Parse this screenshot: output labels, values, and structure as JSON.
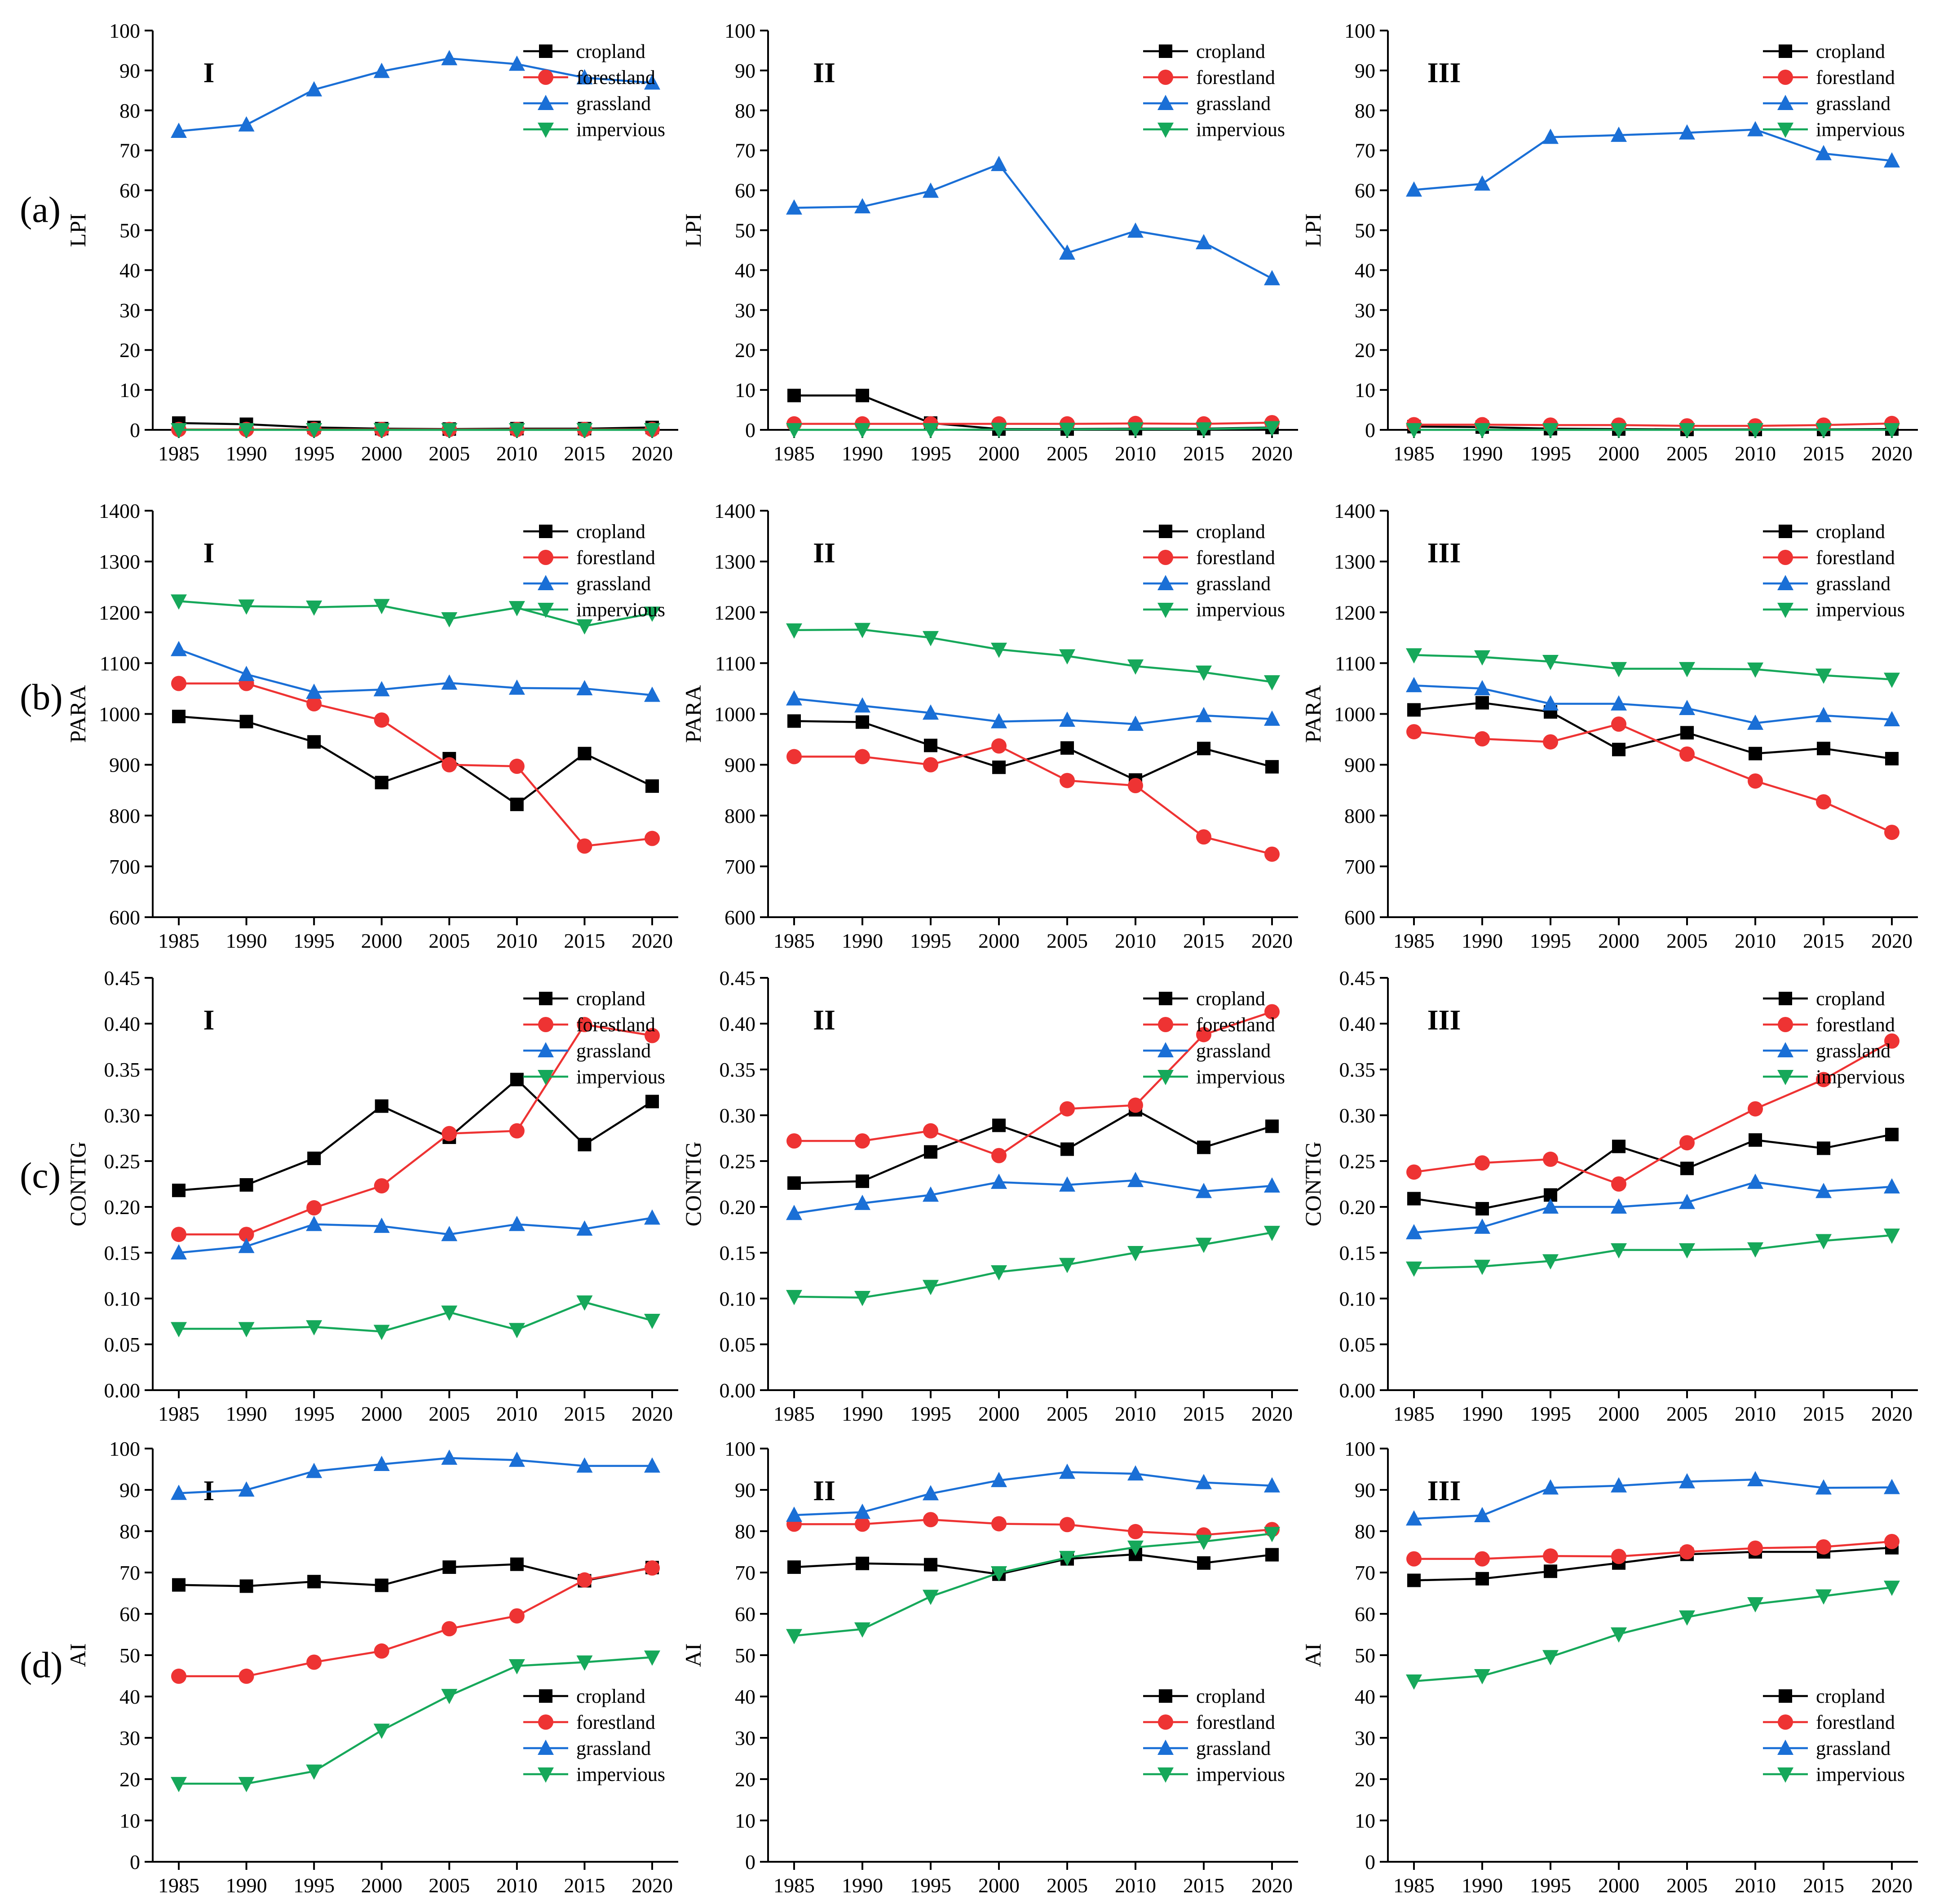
{
  "figure": {
    "row_labels": [
      "(a)",
      "(b)",
      "(c)",
      "(d)"
    ],
    "colors": {
      "cropland": "#000000",
      "forestland": "#ee3333",
      "grassland": "#1a6fd6",
      "impervious": "#16a85a"
    },
    "markers": {
      "cropland": "square",
      "forestland": "circle",
      "grassland": "triangle-up",
      "impervious": "triangle-down"
    }
  },
  "chart_data": [
    {
      "type": "line",
      "row": 0,
      "col": 0,
      "title": "I",
      "ylabel": "LPI",
      "ylim": [
        0,
        100
      ],
      "yticks": [
        "0",
        "10",
        "20",
        "30",
        "40",
        "50",
        "60",
        "70",
        "80",
        "90",
        "100"
      ],
      "categories": [
        "1985",
        "1990",
        "1995",
        "2000",
        "2005",
        "2010",
        "2015",
        "2020"
      ],
      "legend": "top-right",
      "series": [
        {
          "name": "cropland",
          "values": [
            1.7,
            1.4,
            0.6,
            0.3,
            0.2,
            0.3,
            0.3,
            0.6
          ]
        },
        {
          "name": "forestland",
          "values": [
            0.1,
            0.1,
            0.1,
            0.1,
            0.1,
            0.1,
            0.1,
            0.1
          ]
        },
        {
          "name": "grassland",
          "values": [
            74.8,
            76.4,
            85.2,
            89.8,
            93.0,
            91.6,
            88.2,
            86.9
          ]
        },
        {
          "name": "impervious",
          "values": [
            0.0,
            0.0,
            0.0,
            0.0,
            0.0,
            0.0,
            0.0,
            0.0
          ]
        }
      ]
    },
    {
      "type": "line",
      "row": 0,
      "col": 1,
      "title": "II",
      "ylabel": "LPI",
      "ylim": [
        0,
        100
      ],
      "yticks": [
        "0",
        "10",
        "20",
        "30",
        "40",
        "50",
        "60",
        "70",
        "80",
        "90",
        "100"
      ],
      "categories": [
        "1985",
        "1990",
        "1995",
        "2000",
        "2005",
        "2010",
        "2015",
        "2020"
      ],
      "legend": "top-right",
      "series": [
        {
          "name": "cropland",
          "values": [
            8.6,
            8.6,
            1.7,
            0.2,
            0.2,
            0.3,
            0.3,
            0.6
          ]
        },
        {
          "name": "forestland",
          "values": [
            1.5,
            1.5,
            1.5,
            1.5,
            1.5,
            1.6,
            1.5,
            1.8
          ]
        },
        {
          "name": "grassland",
          "values": [
            55.6,
            55.9,
            59.8,
            66.5,
            44.3,
            49.8,
            46.9,
            37.9
          ]
        },
        {
          "name": "impervious",
          "values": [
            0.0,
            0.0,
            0.0,
            0.1,
            0.1,
            0.2,
            0.2,
            0.5
          ]
        }
      ]
    },
    {
      "type": "line",
      "row": 0,
      "col": 2,
      "title": "III",
      "ylabel": "LPI",
      "ylim": [
        0,
        100
      ],
      "yticks": [
        "0",
        "10",
        "20",
        "30",
        "40",
        "50",
        "60",
        "70",
        "80",
        "90",
        "100"
      ],
      "categories": [
        "1985",
        "1990",
        "1995",
        "2000",
        "2005",
        "2010",
        "2015",
        "2020"
      ],
      "legend": "top-right",
      "series": [
        {
          "name": "cropland",
          "values": [
            0.8,
            0.7,
            0.3,
            0.2,
            0.1,
            0.1,
            0.1,
            0.2
          ]
        },
        {
          "name": "forestland",
          "values": [
            1.3,
            1.3,
            1.2,
            1.2,
            1.0,
            1.0,
            1.2,
            1.6
          ]
        },
        {
          "name": "grassland",
          "values": [
            60.1,
            61.6,
            73.3,
            73.8,
            74.4,
            75.2,
            69.2,
            67.4
          ]
        },
        {
          "name": "impervious",
          "values": [
            0.0,
            0.0,
            0.0,
            0.0,
            0.0,
            0.0,
            0.0,
            0.0
          ]
        }
      ]
    },
    {
      "type": "line",
      "row": 1,
      "col": 0,
      "title": "I",
      "ylabel": "PARA",
      "ylim": [
        600,
        1400
      ],
      "yticks": [
        "600",
        "700",
        "800",
        "900",
        "1000",
        "1100",
        "1200",
        "1300",
        "1400"
      ],
      "categories": [
        "1985",
        "1990",
        "1995",
        "2000",
        "2005",
        "2010",
        "2015",
        "2020"
      ],
      "legend": "top-right",
      "series": [
        {
          "name": "cropland",
          "values": [
            995,
            985,
            945,
            865,
            912,
            822,
            922,
            858
          ]
        },
        {
          "name": "forestland",
          "values": [
            1060,
            1060,
            1020,
            988,
            900,
            897,
            740,
            755
          ]
        },
        {
          "name": "grassland",
          "values": [
            1127,
            1078,
            1043,
            1048,
            1061,
            1051,
            1050,
            1037
          ]
        },
        {
          "name": "impervious",
          "values": [
            1222,
            1212,
            1210,
            1213,
            1187,
            1209,
            1173,
            1198
          ]
        }
      ]
    },
    {
      "type": "line",
      "row": 1,
      "col": 1,
      "title": "II",
      "ylabel": "PARA",
      "ylim": [
        600,
        1400
      ],
      "yticks": [
        "600",
        "700",
        "800",
        "900",
        "1000",
        "1100",
        "1200",
        "1300",
        "1400"
      ],
      "categories": [
        "1985",
        "1990",
        "1995",
        "2000",
        "2005",
        "2010",
        "2015",
        "2020"
      ],
      "legend": "top-right",
      "series": [
        {
          "name": "cropland",
          "values": [
            986,
            984,
            938,
            895,
            933,
            870,
            932,
            896
          ]
        },
        {
          "name": "forestland",
          "values": [
            916,
            916,
            900,
            937,
            869,
            859,
            758,
            724
          ]
        },
        {
          "name": "grassland",
          "values": [
            1030,
            1016,
            1002,
            985,
            988,
            980,
            997,
            990
          ]
        },
        {
          "name": "impervious",
          "values": [
            1165,
            1166,
            1150,
            1127,
            1114,
            1094,
            1082,
            1063
          ]
        }
      ]
    },
    {
      "type": "line",
      "row": 1,
      "col": 2,
      "title": "III",
      "ylabel": "PARA",
      "ylim": [
        600,
        1400
      ],
      "yticks": [
        "600",
        "700",
        "800",
        "900",
        "1000",
        "1100",
        "1200",
        "1300",
        "1400"
      ],
      "categories": [
        "1985",
        "1990",
        "1995",
        "2000",
        "2005",
        "2010",
        "2015",
        "2020"
      ],
      "legend": "top-right",
      "series": [
        {
          "name": "cropland",
          "values": [
            1008,
            1022,
            1004,
            930,
            963,
            922,
            932,
            912
          ]
        },
        {
          "name": "forestland",
          "values": [
            965,
            951,
            945,
            980,
            921,
            868,
            827,
            767
          ]
        },
        {
          "name": "grassland",
          "values": [
            1056,
            1050,
            1020,
            1020,
            1011,
            982,
            997,
            989
          ]
        },
        {
          "name": "impervious",
          "values": [
            1116,
            1112,
            1103,
            1089,
            1089,
            1088,
            1076,
            1068
          ]
        }
      ]
    },
    {
      "type": "line",
      "row": 2,
      "col": 0,
      "title": "I",
      "ylabel": "CONTIG",
      "ylim": [
        0,
        0.45
      ],
      "yticks": [
        "0.00",
        "0.05",
        "0.10",
        "0.15",
        "0.20",
        "0.25",
        "0.30",
        "0.35",
        "0.40",
        "0.45"
      ],
      "categories": [
        "1985",
        "1990",
        "1995",
        "2000",
        "2005",
        "2010",
        "2015",
        "2020"
      ],
      "legend": "top-right",
      "series": [
        {
          "name": "cropland",
          "values": [
            0.218,
            0.224,
            0.253,
            0.31,
            0.276,
            0.339,
            0.268,
            0.315
          ]
        },
        {
          "name": "forestland",
          "values": [
            0.17,
            0.17,
            0.199,
            0.223,
            0.28,
            0.283,
            0.399,
            0.387
          ]
        },
        {
          "name": "grassland",
          "values": [
            0.15,
            0.157,
            0.181,
            0.179,
            0.17,
            0.181,
            0.176,
            0.188
          ]
        },
        {
          "name": "impervious",
          "values": [
            0.067,
            0.067,
            0.069,
            0.064,
            0.085,
            0.066,
            0.096,
            0.076
          ]
        }
      ]
    },
    {
      "type": "line",
      "row": 2,
      "col": 1,
      "title": "II",
      "ylabel": "CONTIG",
      "ylim": [
        0,
        0.45
      ],
      "yticks": [
        "0.00",
        "0.05",
        "0.10",
        "0.15",
        "0.20",
        "0.25",
        "0.30",
        "0.35",
        "0.40",
        "0.45"
      ],
      "categories": [
        "1985",
        "1990",
        "1995",
        "2000",
        "2005",
        "2010",
        "2015",
        "2020"
      ],
      "legend": "top-right",
      "series": [
        {
          "name": "cropland",
          "values": [
            0.226,
            0.228,
            0.26,
            0.289,
            0.263,
            0.306,
            0.265,
            0.288
          ]
        },
        {
          "name": "forestland",
          "values": [
            0.272,
            0.272,
            0.283,
            0.256,
            0.307,
            0.311,
            0.388,
            0.413
          ]
        },
        {
          "name": "grassland",
          "values": [
            0.193,
            0.204,
            0.213,
            0.227,
            0.224,
            0.229,
            0.217,
            0.223
          ]
        },
        {
          "name": "impervious",
          "values": [
            0.102,
            0.101,
            0.113,
            0.129,
            0.137,
            0.15,
            0.159,
            0.172
          ]
        }
      ]
    },
    {
      "type": "line",
      "row": 2,
      "col": 2,
      "title": "III",
      "ylabel": "CONTIG",
      "ylim": [
        0,
        0.45
      ],
      "yticks": [
        "0.00",
        "0.05",
        "0.10",
        "0.15",
        "0.20",
        "0.25",
        "0.30",
        "0.35",
        "0.40",
        "0.45"
      ],
      "categories": [
        "1985",
        "1990",
        "1995",
        "2000",
        "2005",
        "2010",
        "2015",
        "2020"
      ],
      "legend": "top-right",
      "series": [
        {
          "name": "cropland",
          "values": [
            0.209,
            0.198,
            0.213,
            0.266,
            0.242,
            0.273,
            0.264,
            0.279
          ]
        },
        {
          "name": "forestland",
          "values": [
            0.238,
            0.248,
            0.252,
            0.225,
            0.27,
            0.307,
            0.339,
            0.381
          ]
        },
        {
          "name": "grassland",
          "values": [
            0.172,
            0.178,
            0.2,
            0.2,
            0.205,
            0.227,
            0.217,
            0.222
          ]
        },
        {
          "name": "impervious",
          "values": [
            0.133,
            0.135,
            0.141,
            0.153,
            0.153,
            0.154,
            0.163,
            0.169
          ]
        }
      ]
    },
    {
      "type": "line",
      "row": 3,
      "col": 0,
      "title": "I",
      "ylabel": "AI",
      "ylim": [
        0,
        100
      ],
      "yticks": [
        "0",
        "10",
        "20",
        "30",
        "40",
        "50",
        "60",
        "70",
        "80",
        "90",
        "100"
      ],
      "categories": [
        "1985",
        "1990",
        "1995",
        "2000",
        "2005",
        "2010",
        "2015",
        "2020"
      ],
      "legend": "bottom-right",
      "series": [
        {
          "name": "cropland",
          "values": [
            67.0,
            66.7,
            67.8,
            66.9,
            71.3,
            72.0,
            68.0,
            71.2
          ]
        },
        {
          "name": "forestland",
          "values": [
            44.9,
            44.9,
            48.3,
            51.0,
            56.4,
            59.5,
            68.2,
            71.1
          ]
        },
        {
          "name": "grassland",
          "values": [
            89.2,
            90.0,
            94.5,
            96.2,
            97.7,
            97.2,
            95.8,
            95.8
          ]
        },
        {
          "name": "impervious",
          "values": [
            18.9,
            18.9,
            21.9,
            31.8,
            40.2,
            47.4,
            48.3,
            49.5
          ]
        }
      ]
    },
    {
      "type": "line",
      "row": 3,
      "col": 1,
      "title": "II",
      "ylabel": "AI",
      "ylim": [
        0,
        100
      ],
      "yticks": [
        "0",
        "10",
        "20",
        "30",
        "40",
        "50",
        "60",
        "70",
        "80",
        "90",
        "100"
      ],
      "categories": [
        "1985",
        "1990",
        "1995",
        "2000",
        "2005",
        "2010",
        "2015",
        "2020"
      ],
      "legend": "bottom-right",
      "series": [
        {
          "name": "cropland",
          "values": [
            71.3,
            72.2,
            71.9,
            69.6,
            73.3,
            74.4,
            72.3,
            74.3
          ]
        },
        {
          "name": "forestland",
          "values": [
            81.7,
            81.7,
            82.8,
            81.8,
            81.6,
            79.9,
            79.1,
            80.4
          ]
        },
        {
          "name": "grassland",
          "values": [
            83.9,
            84.6,
            89.1,
            92.3,
            94.3,
            93.9,
            91.8,
            91.0
          ]
        },
        {
          "name": "impervious",
          "values": [
            54.7,
            56.3,
            64.2,
            69.9,
            73.6,
            76.1,
            77.5,
            79.4
          ]
        }
      ]
    },
    {
      "type": "line",
      "row": 3,
      "col": 2,
      "title": "III",
      "ylabel": "AI",
      "ylim": [
        0,
        100
      ],
      "yticks": [
        "0",
        "10",
        "20",
        "30",
        "40",
        "50",
        "60",
        "70",
        "80",
        "90",
        "100"
      ],
      "categories": [
        "1985",
        "1990",
        "1995",
        "2000",
        "2005",
        "2010",
        "2015",
        "2020"
      ],
      "legend": "bottom-right",
      "series": [
        {
          "name": "cropland",
          "values": [
            68.1,
            68.5,
            70.3,
            72.3,
            74.4,
            75.0,
            75.0,
            76.0
          ]
        },
        {
          "name": "forestland",
          "values": [
            73.3,
            73.3,
            74.0,
            73.9,
            75.0,
            75.9,
            76.2,
            77.5
          ]
        },
        {
          "name": "grassland",
          "values": [
            83.0,
            83.8,
            90.5,
            91.0,
            92.0,
            92.5,
            90.5,
            90.6
          ]
        },
        {
          "name": "impervious",
          "values": [
            43.7,
            45.0,
            49.6,
            55.1,
            59.2,
            62.4,
            64.3,
            66.4
          ]
        }
      ]
    }
  ]
}
